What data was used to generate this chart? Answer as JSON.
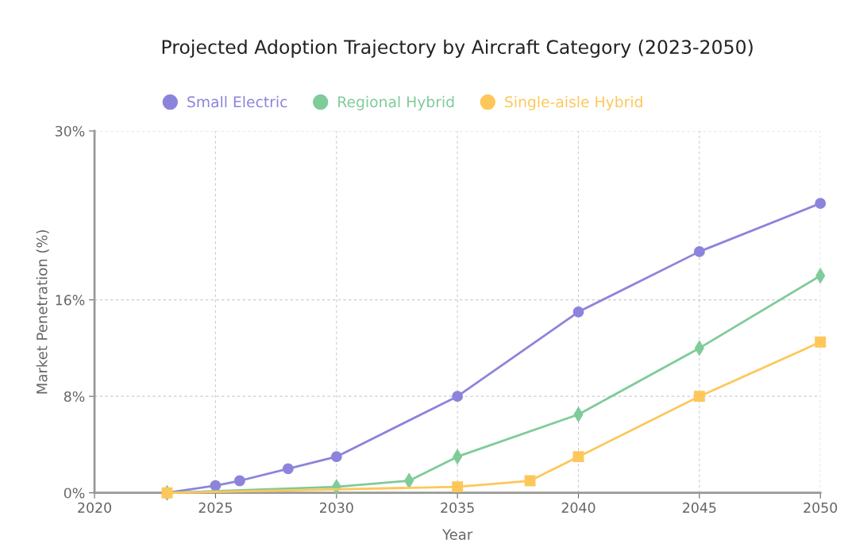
{
  "chart_data": {
    "type": "line",
    "title": "Projected Adoption Trajectory by Aircraft Category (2023-2050)",
    "xlabel": "Year",
    "ylabel": "Market Penetration (%)",
    "xlim": [
      2020,
      2050
    ],
    "xticks": [
      2020,
      2025,
      2030,
      2035,
      2040,
      2045,
      2050
    ],
    "ylim": [
      0,
      30
    ],
    "yticks": [
      {
        "value": 0,
        "label": "0%"
      },
      {
        "value": 8,
        "label": "8%"
      },
      {
        "value": 16,
        "label": "16%"
      },
      {
        "value": 30,
        "label": "30%"
      }
    ],
    "grid": true,
    "legend": "top",
    "series": [
      {
        "name": "Small Electric",
        "color": "#8c84dc",
        "marker": "circle",
        "x": [
          2023,
          2025,
          2026,
          2028,
          2030,
          2035,
          2040,
          2045,
          2050
        ],
        "values": [
          0,
          0.6,
          1.0,
          2.0,
          3.0,
          8.0,
          15.0,
          20.0,
          24.0
        ]
      },
      {
        "name": "Regional Hybrid",
        "color": "#7fcb9a",
        "marker": "diamond",
        "x": [
          2023,
          2030,
          2033,
          2035,
          2040,
          2045,
          2050
        ],
        "values": [
          0,
          0.5,
          1.0,
          3.0,
          6.5,
          12.0,
          18.0
        ]
      },
      {
        "name": "Single-aisle Hybrid",
        "color": "#fdc75a",
        "marker": "square",
        "x": [
          2023,
          2035,
          2038,
          2040,
          2045,
          2050
        ],
        "values": [
          0,
          0.5,
          1.0,
          3.0,
          8.0,
          12.5
        ]
      }
    ]
  }
}
